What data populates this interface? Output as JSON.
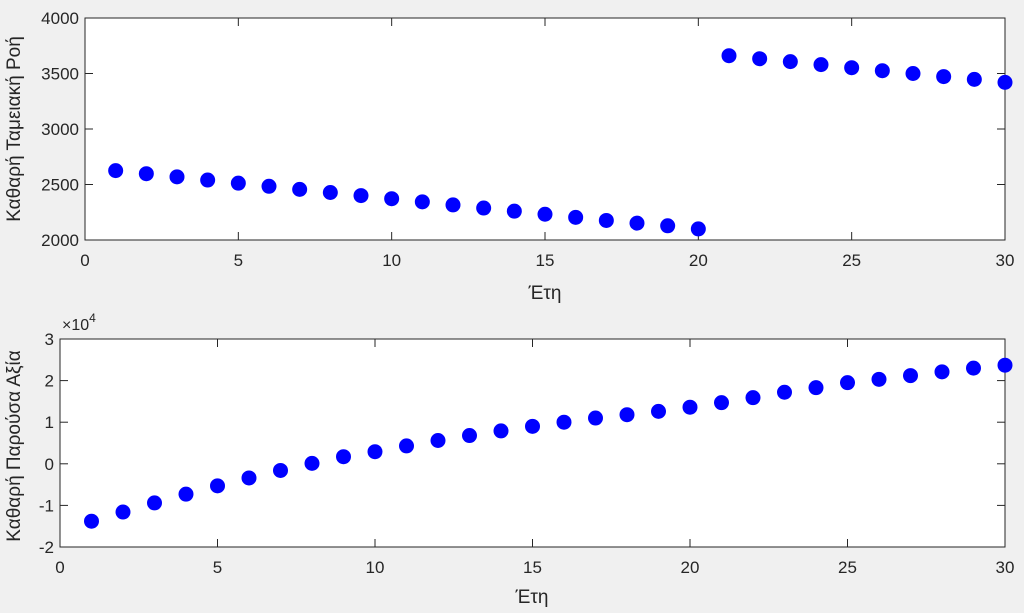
{
  "chart_data": [
    {
      "type": "scatter",
      "xlabel": "Έτη",
      "ylabel": "Καθαρή Ταμειακή Ροή",
      "xlim": [
        0,
        30
      ],
      "ylim": [
        2000,
        4000
      ],
      "xticks": [
        0,
        5,
        10,
        15,
        20,
        25,
        30
      ],
      "yticks": [
        2000,
        2500,
        3000,
        3500,
        4000
      ],
      "xtick_labels": [
        "0",
        "5",
        "10",
        "15",
        "20",
        "25",
        "30"
      ],
      "ytick_labels": [
        "2000",
        "2500",
        "3000",
        "3500",
        "4000"
      ],
      "grid": false,
      "marker_color": "#0000ff",
      "series": [
        {
          "x": [
            1,
            2,
            3,
            4,
            5,
            6,
            7,
            8,
            9,
            10,
            11,
            12,
            13,
            14,
            15,
            16,
            17,
            18,
            19,
            20,
            21,
            22,
            23,
            24,
            25,
            26,
            27,
            28,
            29,
            30
          ],
          "y": [
            2625,
            2597,
            2569,
            2540,
            2512,
            2484,
            2456,
            2428,
            2400,
            2372,
            2344,
            2316,
            2288,
            2260,
            2232,
            2204,
            2176,
            2152,
            2128,
            2100,
            3660,
            3633,
            3607,
            3580,
            3552,
            3525,
            3500,
            3472,
            3447,
            3420
          ]
        }
      ]
    },
    {
      "type": "scatter",
      "xlabel": "Έτη",
      "ylabel": "Καθαρή Παρούσα Αξία",
      "exponent_label_base": "×10",
      "exponent_label_power": "4",
      "xlim": [
        0,
        30
      ],
      "ylim": [
        -2,
        3
      ],
      "xticks": [
        0,
        5,
        10,
        15,
        20,
        25,
        30
      ],
      "yticks": [
        -2,
        -1,
        0,
        1,
        2,
        3
      ],
      "xtick_labels": [
        "0",
        "5",
        "10",
        "15",
        "20",
        "25",
        "30"
      ],
      "ytick_labels": [
        "-2",
        "-1",
        "0",
        "1",
        "2",
        "3"
      ],
      "grid": false,
      "marker_color": "#0000ff",
      "series": [
        {
          "x": [
            1,
            2,
            3,
            4,
            5,
            6,
            7,
            8,
            9,
            10,
            11,
            12,
            13,
            14,
            15,
            16,
            17,
            18,
            19,
            20,
            21,
            22,
            23,
            24,
            25,
            26,
            27,
            28,
            29,
            30
          ],
          "y": [
            -1.38,
            -1.16,
            -0.94,
            -0.73,
            -0.53,
            -0.34,
            -0.16,
            0.01,
            0.17,
            0.29,
            0.43,
            0.56,
            0.68,
            0.79,
            0.9,
            1.0,
            1.1,
            1.18,
            1.26,
            1.36,
            1.47,
            1.59,
            1.72,
            1.83,
            1.95,
            2.03,
            2.12,
            2.21,
            2.3,
            2.37
          ]
        }
      ]
    }
  ]
}
